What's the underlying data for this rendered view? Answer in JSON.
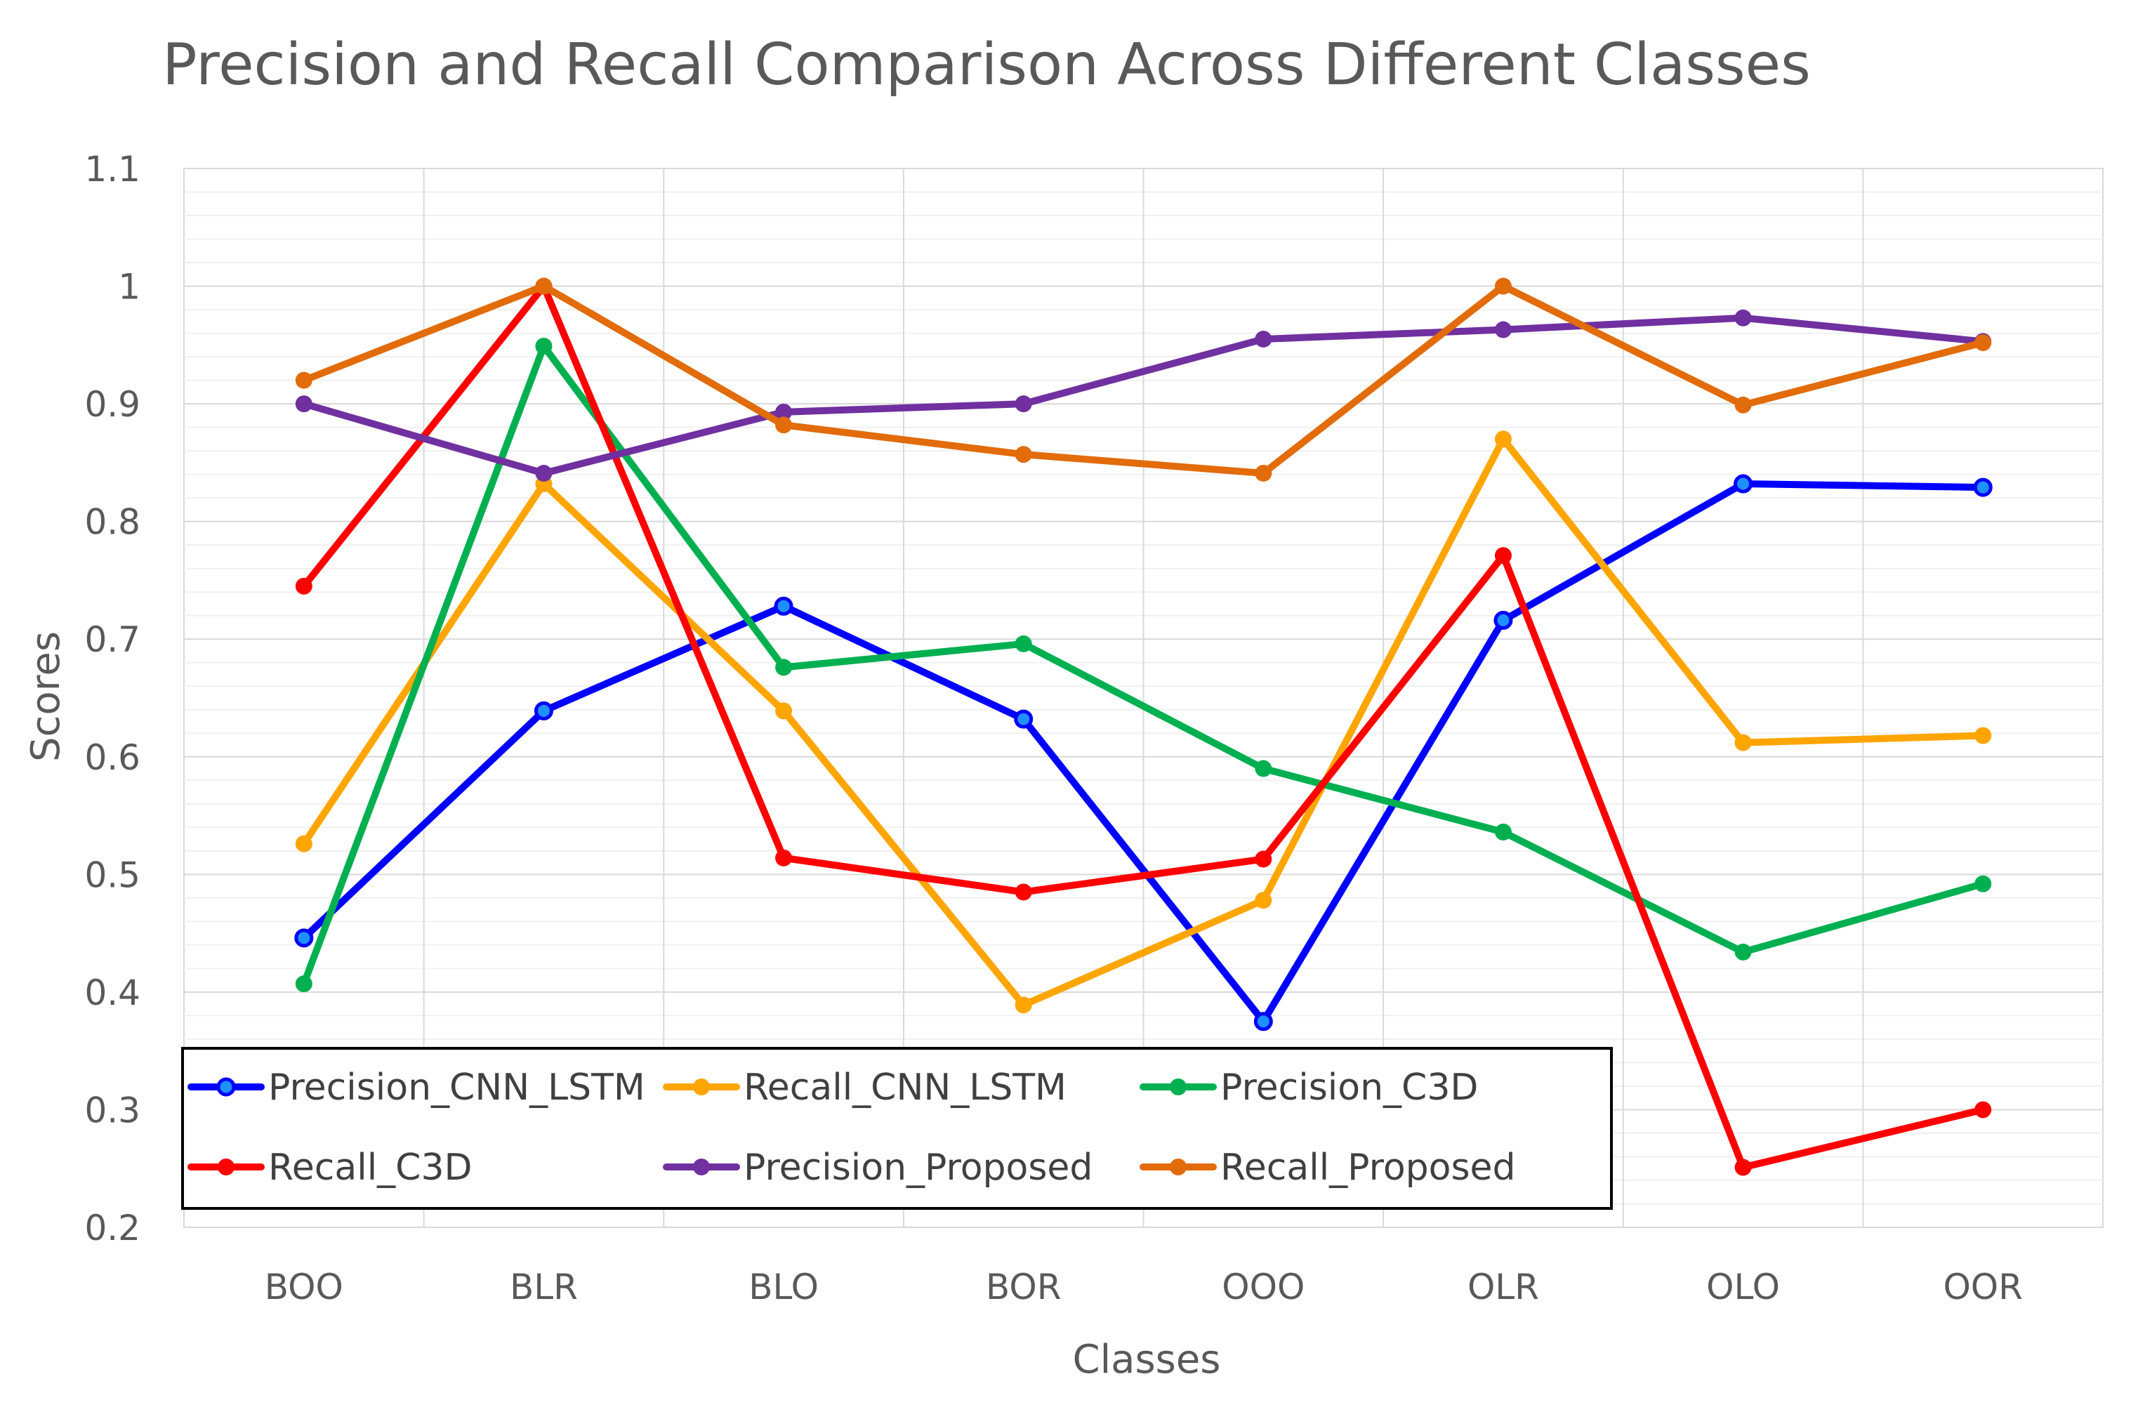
{
  "chart_data": {
    "type": "line",
    "title": "Precision and Recall Comparison Across Different Classes",
    "xlabel": "Classes",
    "ylabel": "Scores",
    "ylim": [
      0.2,
      1.1
    ],
    "y_ticks": [
      0.2,
      0.3,
      0.4,
      0.5,
      0.6,
      0.7,
      0.8,
      0.9,
      1,
      1.1
    ],
    "y_tick_labels": [
      "0.2",
      "0.3",
      "0.4",
      "0.5",
      "0.6",
      "0.7",
      "0.8",
      "0.9",
      "1",
      "1.1"
    ],
    "categories": [
      "BOO",
      "BLR",
      "BLO",
      "BOR",
      "OOO",
      "OLR",
      "OLO",
      "OOR"
    ],
    "grid": true,
    "legend_position": "bottom-left",
    "series": [
      {
        "name": "Precision_CNN_LSTM",
        "color": "#0000FF",
        "values": [
          0.446,
          0.639,
          0.728,
          0.632,
          0.375,
          0.716,
          0.832,
          0.829
        ]
      },
      {
        "name": "Recall_CNN_LSTM",
        "color": "#FFA500",
        "values": [
          0.526,
          0.832,
          0.639,
          0.389,
          0.478,
          0.87,
          0.612,
          0.618
        ]
      },
      {
        "name": "Precision_C3D",
        "color": "#00B050",
        "values": [
          0.407,
          0.949,
          0.676,
          0.696,
          0.59,
          0.536,
          0.434,
          0.492
        ]
      },
      {
        "name": "Recall_C3D",
        "color": "#FF0000",
        "values": [
          0.745,
          1.0,
          0.514,
          0.485,
          0.513,
          0.771,
          0.251,
          0.3
        ]
      },
      {
        "name": "Precision_Proposed",
        "color": "#7030A0",
        "values": [
          0.9,
          0.841,
          0.893,
          0.9,
          0.955,
          0.963,
          0.973,
          0.953
        ]
      },
      {
        "name": "Recall_Proposed",
        "color": "#E26B0A",
        "values": [
          0.92,
          1.0,
          0.882,
          0.857,
          0.841,
          1.0,
          0.899,
          0.952
        ]
      }
    ]
  }
}
